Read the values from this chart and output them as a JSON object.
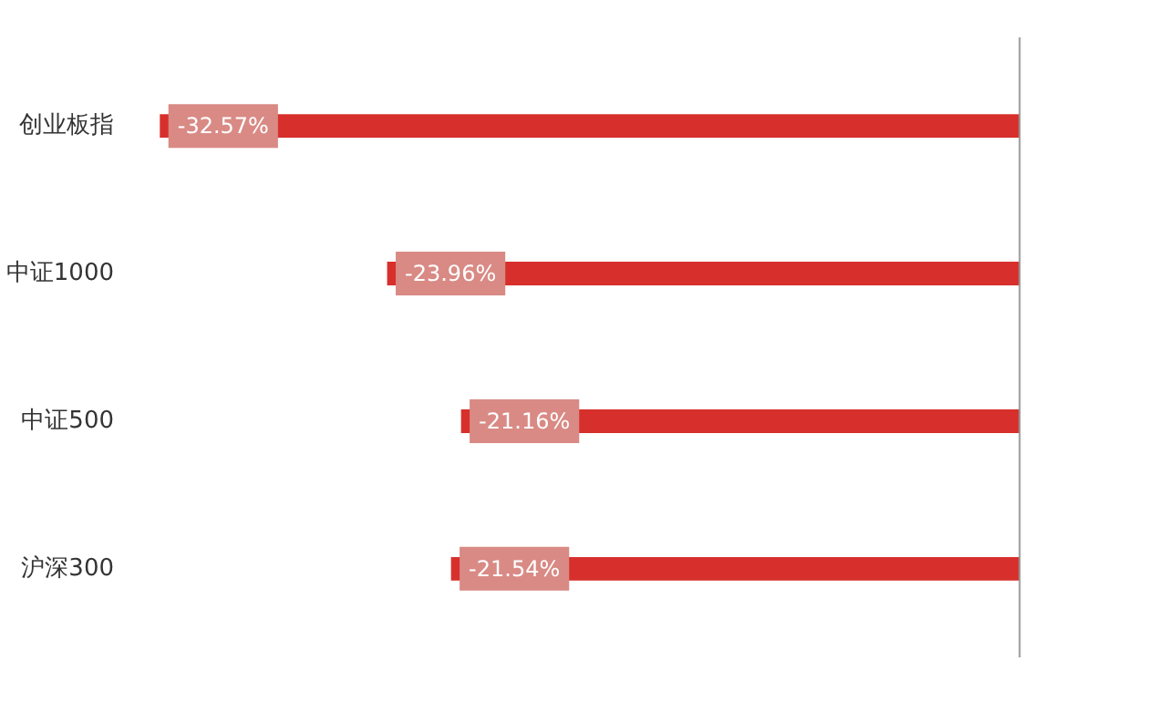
{
  "chart_data": {
    "type": "bar",
    "orientation": "horizontal",
    "categories": [
      "创业板指",
      "中证1000",
      "中证500",
      "沪深300"
    ],
    "values": [
      -32.57,
      -23.96,
      -21.16,
      -21.54
    ],
    "value_labels": [
      "-32.57%",
      "-23.96%",
      "-21.16%",
      "-21.54%"
    ],
    "color": "#d7302c",
    "grid": false,
    "tick_labels": "y",
    "ref_lines": [
      {
        "axis": "x",
        "value": 0,
        "color": "#999999"
      }
    ]
  }
}
